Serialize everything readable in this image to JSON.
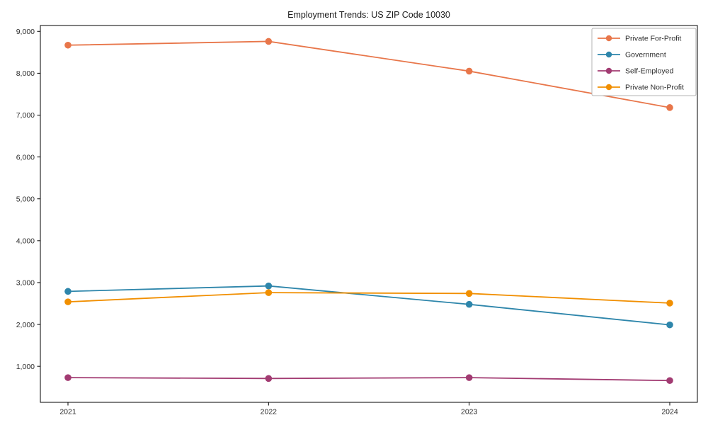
{
  "chart_data": {
    "type": "line",
    "title": "Employment Trends: US ZIP Code 10030",
    "categories": [
      "2021",
      "2022",
      "2023",
      "2024"
    ],
    "series": [
      {
        "name": "Private For-Profit",
        "color": "#E8764A",
        "values": [
          8670,
          8760,
          8050,
          7180
        ]
      },
      {
        "name": "Government",
        "color": "#2E86AB",
        "values": [
          2790,
          2920,
          2480,
          1990
        ]
      },
      {
        "name": "Self-Employed",
        "color": "#A23B72",
        "values": [
          730,
          710,
          730,
          660
        ]
      },
      {
        "name": "Private Non-Profit",
        "color": "#F18F01",
        "values": [
          2540,
          2760,
          2740,
          2510
        ]
      }
    ],
    "xlabel": "",
    "ylabel": "",
    "xtick_labels": [
      "2021",
      "2022",
      "2023",
      "2024"
    ],
    "yticks": [
      1000,
      2000,
      3000,
      4000,
      5000,
      6000,
      7000,
      8000,
      9000
    ],
    "ytick_labels": [
      "1,000",
      "2,000",
      "3,000",
      "4,000",
      "5,000",
      "6,000",
      "7,000",
      "8,000",
      "9,000"
    ],
    "ylim": [
      140,
      9140
    ],
    "grid": false,
    "legend_position": "upper right",
    "marker": "circle",
    "axis_color": "#000000",
    "legend_border_color": "#b3b3b3"
  }
}
